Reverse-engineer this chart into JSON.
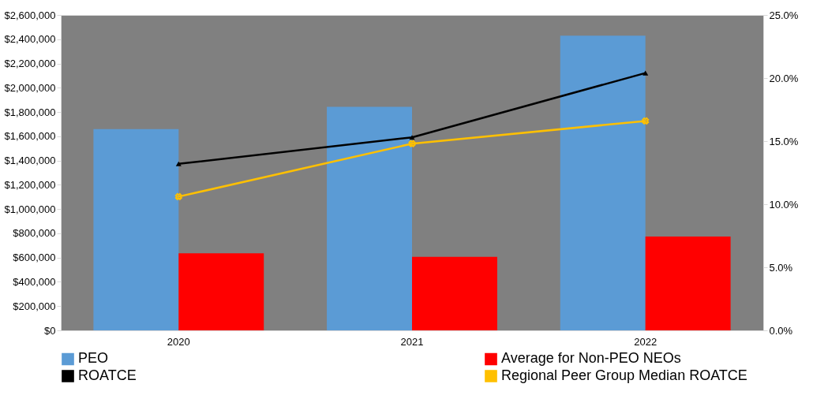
{
  "chart_data": {
    "type": "bar",
    "categories": [
      "2020",
      "2021",
      "2022"
    ],
    "series": [
      {
        "name": "PEO",
        "color": "#5b9bd5",
        "values": [
          1659000,
          1843000,
          2430000
        ]
      },
      {
        "name": "Average for Non-PEO NEOs",
        "color": "#ff0000",
        "values": [
          636000,
          606000,
          773000
        ]
      },
      {
        "name": "ROATCE",
        "type": "line",
        "axis": "y2",
        "color": "#000000",
        "marker": "triangle",
        "values": [
          13.2,
          15.3,
          20.4
        ]
      },
      {
        "name": "Regional Peer Group Median ROATCE",
        "type": "line",
        "axis": "y2",
        "color": "#ffc000",
        "marker": "cross",
        "values": [
          10.6,
          14.8,
          16.6
        ]
      }
    ],
    "ylim": [
      0,
      2600000
    ],
    "yticks": [
      {
        "value": 0,
        "label": "$0"
      },
      {
        "value": 200000,
        "label": "$200,000"
      },
      {
        "value": 400000,
        "label": "$400,000"
      },
      {
        "value": 600000,
        "label": "$600,000"
      },
      {
        "value": 800000,
        "label": "$800,000"
      },
      {
        "value": 1000000,
        "label": "$1,000,000"
      },
      {
        "value": 1200000,
        "label": "$1,200,000"
      },
      {
        "value": 1400000,
        "label": "$1,400,000"
      },
      {
        "value": 1600000,
        "label": "$1,600,000"
      },
      {
        "value": 1800000,
        "label": "$1,800,000"
      },
      {
        "value": 2000000,
        "label": "$2,000,000"
      },
      {
        "value": 2200000,
        "label": "$2,200,000"
      },
      {
        "value": 2400000,
        "label": "$2,400,000"
      },
      {
        "value": 2600000,
        "label": "$2,600,000"
      }
    ],
    "y2lim": [
      0,
      25
    ],
    "y2ticks": [
      {
        "value": 0,
        "label": "0.0%"
      },
      {
        "value": 5,
        "label": "5.0%"
      },
      {
        "value": 10,
        "label": "10.0%"
      },
      {
        "value": 15,
        "label": "15.0%"
      },
      {
        "value": 20,
        "label": "20.0%"
      },
      {
        "value": 25,
        "label": "25.0%"
      }
    ],
    "grid": false,
    "legend": "bottom"
  }
}
